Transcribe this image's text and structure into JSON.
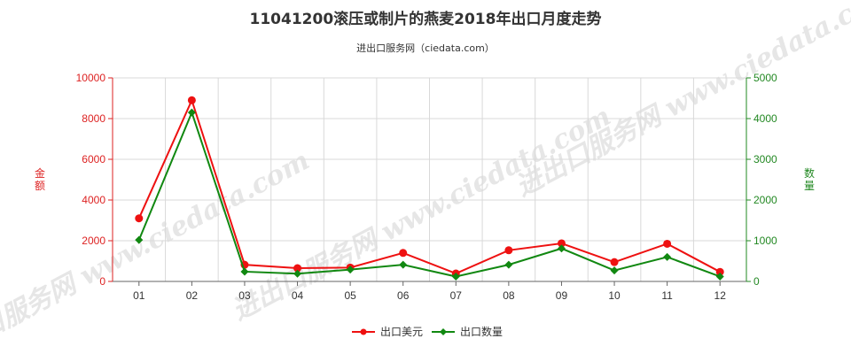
{
  "chart_data": {
    "type": "line",
    "title": "11041200滚压或制片的燕麦2018年出口月度走势",
    "subtitle": "进出口服务网（ciedata.com）",
    "categories": [
      "01",
      "02",
      "03",
      "04",
      "05",
      "06",
      "07",
      "08",
      "09",
      "10",
      "11",
      "12"
    ],
    "y_left": {
      "label": "金额",
      "ylim": [
        0,
        10000
      ],
      "ticks": [
        0,
        2000,
        4000,
        6000,
        8000,
        10000
      ],
      "color": "#dd2222"
    },
    "y_right": {
      "label": "数量",
      "ylim": [
        0,
        5000
      ],
      "ticks": [
        0,
        1000,
        2000,
        3000,
        4000,
        5000
      ],
      "color": "#228822"
    },
    "series": [
      {
        "name": "出口美元",
        "axis": "left",
        "color": "#ee1111",
        "values": [
          3100,
          8900,
          820,
          650,
          680,
          1400,
          390,
          1530,
          1870,
          950,
          1850,
          470
        ]
      },
      {
        "name": "出口数量",
        "axis": "right",
        "color": "#118811",
        "values": [
          1020,
          4150,
          240,
          190,
          290,
          410,
          120,
          410,
          810,
          270,
          600,
          120
        ]
      }
    ],
    "grid": true,
    "legend_position": "bottom-center",
    "watermark": "进出口服务网 www.ciedata.com"
  }
}
